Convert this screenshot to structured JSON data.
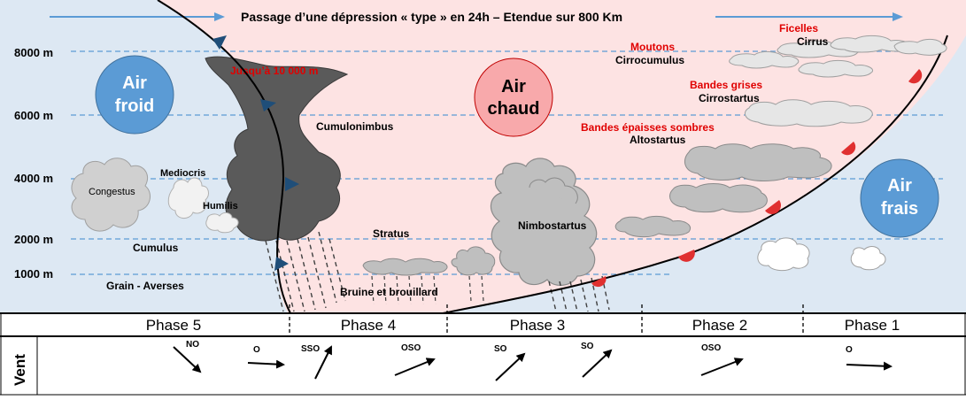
{
  "title": "Passage d’une dépression « type » en 24h – Etendue sur 800 Km",
  "altitudes": [
    "8000 m",
    "6000 m",
    "4000 m",
    "2000 m",
    "1000 m"
  ],
  "air_masses": {
    "cold": [
      "Air",
      "froid"
    ],
    "warm": [
      "Air",
      "chaud"
    ],
    "cool": [
      "Air",
      "frais"
    ]
  },
  "cold_front_clouds": {
    "top_note": "Jusqu’à 10 000 m",
    "cumulonimbus": "Cumulonimbus",
    "congestus": "Congestus",
    "mediocris": "Mediocris",
    "humilis": "Humilis",
    "cumulus": "Cumulus",
    "grain": "Grain - Averses"
  },
  "warm_sector_clouds": {
    "stratus": "Stratus",
    "bruine": "Bruine et brouillard",
    "nimbostratus": "Nimbostartus"
  },
  "warm_front_clouds": {
    "ficelles": "Ficelles",
    "cirrus": "Cirrus",
    "moutons": "Moutons",
    "cirrocumulus": "Cirrocumulus",
    "bandes_grises": "Bandes grises",
    "cirrostratus": "Cirrostartus",
    "bandes_epaisses": "Bandes épaisses sombres",
    "altostratus": "Altostartus"
  },
  "phases": [
    "Phase 5",
    "Phase 4",
    "Phase 3",
    "Phase 2",
    "Phase 1"
  ],
  "wind": {
    "label": "Vent",
    "directions": [
      "NO",
      "O",
      "SSO",
      "OSO",
      "SO",
      "SO",
      "OSO",
      "O"
    ]
  },
  "colors": {
    "cold_air_bg": "#dde8f3",
    "warm_air_bg": "#fde3e3",
    "cold_bubble": "#5b9bd5",
    "warm_bubble": "#f8a9ab",
    "cloud_grey": "#bfbfbf",
    "cb_grey": "#5a5a5a",
    "front_red": "#e03030",
    "front_blue": "#1f4e79",
    "red_text": "#e00000"
  }
}
